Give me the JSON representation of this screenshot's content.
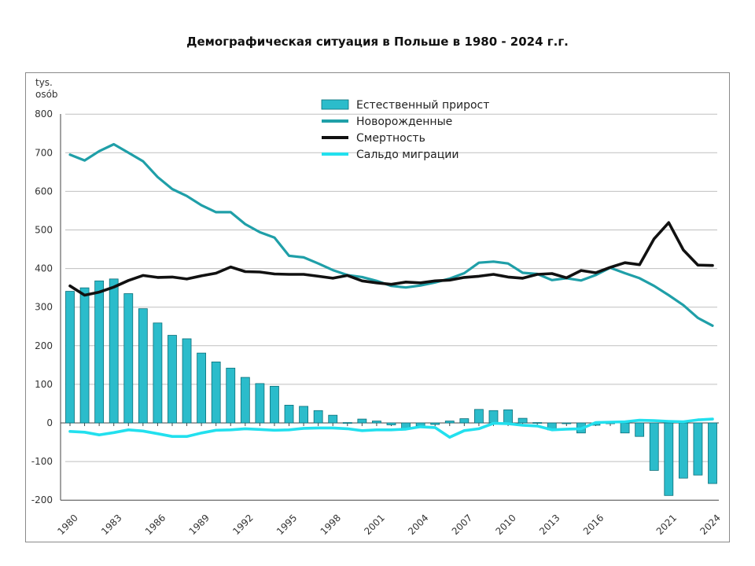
{
  "title": "Демографическая ситуация в Польше в 1980 - 2024 г.г.",
  "colors": {
    "bar": "#2bbccb",
    "bar_stroke": "#0b6f79",
    "births": "#1f9fa8",
    "deaths": "#111111",
    "migration": "#22e0ee",
    "grid": "#bfbfbf"
  },
  "chart_data": {
    "type": "bar",
    "title": "Демографическая ситуация в Польше в 1980 - 2024 г.г.",
    "ylabel_lines": [
      "tys.",
      "osób"
    ],
    "ylim": [
      -200,
      800
    ],
    "yticks": [
      800,
      700,
      600,
      500,
      400,
      300,
      200,
      100,
      0,
      -100,
      -200
    ],
    "xlim": [
      1980,
      2024
    ],
    "xticks": [
      "1980",
      "1983",
      "1986",
      "1989",
      "1992",
      "1995",
      "1998",
      "2001",
      "2004",
      "2007",
      "2010",
      "2013",
      "2016",
      "2021",
      "2024"
    ],
    "grid": "horizontal",
    "legend_position": "top-center",
    "x": [
      1980,
      1981,
      1982,
      1983,
      1984,
      1985,
      1986,
      1987,
      1988,
      1989,
      1990,
      1991,
      1992,
      1993,
      1994,
      1995,
      1996,
      1997,
      1998,
      1999,
      2000,
      2001,
      2002,
      2003,
      2004,
      2005,
      2006,
      2007,
      2008,
      2009,
      2010,
      2011,
      2012,
      2013,
      2014,
      2015,
      2016,
      2017,
      2018,
      2019,
      2020,
      2021,
      2022,
      2023,
      2024
    ],
    "series": [
      {
        "name": "Естественный прирост",
        "kind": "bar",
        "values": [
          341,
          350,
          368,
          373,
          335,
          296,
          259,
          227,
          218,
          181,
          158,
          142,
          118,
          102,
          95,
          46,
          43,
          32,
          20,
          1,
          10,
          5,
          -5,
          -14,
          -8,
          -4,
          5,
          11,
          35,
          32,
          34,
          12,
          1,
          -18,
          -1,
          -26,
          -6,
          0,
          -26,
          -35,
          -123,
          -188,
          -143,
          -135,
          -157
        ]
      },
      {
        "name": "Новорожденные",
        "kind": "line",
        "values": [
          695,
          680,
          704,
          722,
          700,
          678,
          637,
          606,
          588,
          564,
          546,
          546,
          515,
          494,
          480,
          433,
          429,
          413,
          396,
          383,
          378,
          368,
          355,
          351,
          356,
          364,
          374,
          388,
          415,
          418,
          413,
          389,
          386,
          370,
          375,
          369,
          383,
          402,
          388,
          375,
          355,
          331,
          305,
          272,
          252
        ]
      },
      {
        "name": "Смертность",
        "kind": "line",
        "values": [
          355,
          331,
          339,
          352,
          369,
          382,
          377,
          378,
          373,
          381,
          388,
          404,
          392,
          391,
          386,
          385,
          385,
          380,
          375,
          382,
          368,
          363,
          359,
          365,
          363,
          368,
          370,
          377,
          380,
          385,
          378,
          375,
          385,
          387,
          376,
          395,
          389,
          403,
          415,
          410,
          477,
          519,
          448,
          409,
          408
        ]
      },
      {
        "name": "Сальдо миграции",
        "kind": "line",
        "values": [
          -22,
          -24,
          -31,
          -25,
          -18,
          -21,
          -28,
          -35,
          -35,
          -26,
          -19,
          -18,
          -15,
          -17,
          -19,
          -18,
          -14,
          -13,
          -13,
          -15,
          -20,
          -18,
          -18,
          -16,
          -10,
          -12,
          -37,
          -20,
          -15,
          -1,
          -2,
          -6,
          -8,
          -18,
          -16,
          -15,
          1,
          2,
          3,
          7,
          6,
          4,
          3,
          8,
          10
        ]
      }
    ]
  }
}
